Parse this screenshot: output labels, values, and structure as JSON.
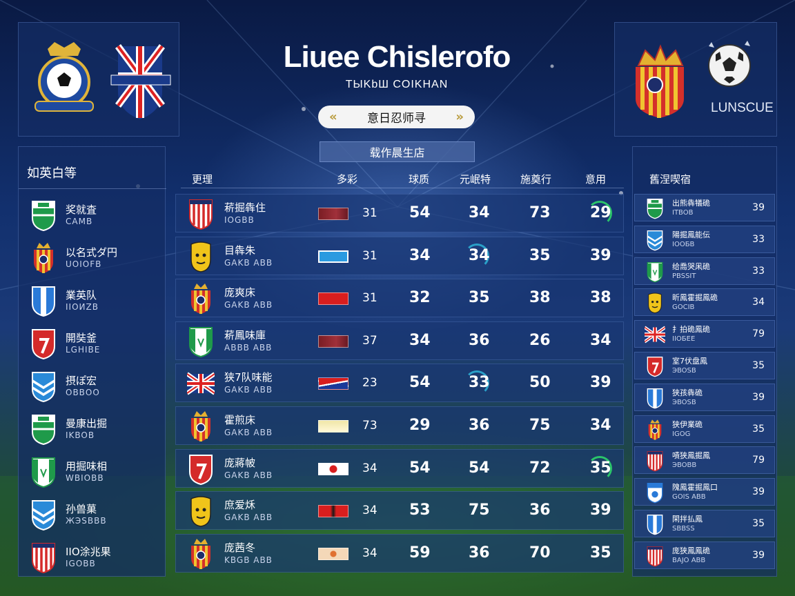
{
  "header": {
    "title": "Liuee Chislerofo",
    "subtitle": "TЫKbШ COIKHAN",
    "nav_label": "意日忍师寻",
    "nav_prev_icon": "chevron-left-double-icon",
    "nav_next_icon": "chevron-right-double-icon",
    "table_tab_label": "载作晨生店"
  },
  "logos": {
    "right_brand_text": "LUNSCUE",
    "left_icons": [
      "club-crest-icon",
      "union-jack-shield-icon"
    ],
    "right_icons": [
      "crowned-shield-icon",
      "football-icon"
    ]
  },
  "left_panel": {
    "title": "如英白等",
    "items": [
      {
        "name": "奖就査",
        "code": "CAMB",
        "crest": "green"
      },
      {
        "name": "以名式ダ円",
        "code": "UOIOFB",
        "crest": "redyellow"
      },
      {
        "name": "業英队",
        "code": "IIOИZB",
        "crest": "blue"
      },
      {
        "name": "開奘釜",
        "code": "LGHIBE",
        "crest": "red"
      },
      {
        "name": "摂ぽ宏",
        "code": "ОВВОО",
        "crest": "bluestripes"
      },
      {
        "name": "曼康出掘",
        "code": "IKBOB",
        "crest": "green"
      },
      {
        "name": "用掘味相",
        "code": "WBIOBB",
        "crest": "greenwhite"
      },
      {
        "name": "孙兽菓",
        "code": "ЖЭSBBB",
        "crest": "bluestripes"
      },
      {
        "name": "IIO涂兆果",
        "code": "IGOBB",
        "crest": "redstripes"
      }
    ]
  },
  "table": {
    "headers": [
      "更理",
      "多彩",
      "球质",
      "元岷特",
      "施奠行",
      "意用"
    ],
    "rows": [
      {
        "name": "菥掘犇住",
        "code": "IOGBB",
        "crest": "redstripes",
        "flag": "darkred",
        "c1": "31",
        "c2": "54",
        "c3": "34",
        "c4": "73",
        "c5": "29",
        "ring": "c5g"
      },
      {
        "name": "目犇朱",
        "code": "GAKB ABB",
        "crest": "yellowface",
        "flag": "lightblue",
        "c1": "31",
        "c2": "34",
        "c3": "34",
        "c4": "35",
        "c5": "39",
        "ring": "c3"
      },
      {
        "name": "庞爽床",
        "code": "GAKB ABB",
        "crest": "redyellow",
        "flag": "red",
        "c1": "31",
        "c2": "32",
        "c3": "35",
        "c4": "38",
        "c5": "38",
        "ring": ""
      },
      {
        "name": "菥鳳味庫",
        "code": "ABBB ABB",
        "crest": "greenwhite",
        "flag": "darkred",
        "c1": "37",
        "c2": "34",
        "c3": "36",
        "c4": "26",
        "c5": "34",
        "ring": ""
      },
      {
        "name": "狭7队味能",
        "code": "GAKB ABB",
        "crest": "unionjack",
        "flag": "redblue",
        "c1": "23",
        "c2": "54",
        "c3": "33",
        "c4": "50",
        "c5": "39",
        "ring": "c3"
      },
      {
        "name": "霍煎床",
        "code": "GAKB ABB",
        "crest": "redyellow",
        "flag": "paleyellow",
        "c1": "73",
        "c2": "29",
        "c3": "36",
        "c4": "75",
        "c5": "34",
        "ring": ""
      },
      {
        "name": "庞蔣帔",
        "code": "GAKB ABB",
        "crest": "red",
        "flag": "japan",
        "c1": "34",
        "c2": "54",
        "c3": "54",
        "c4": "72",
        "c5": "35",
        "ring": "c5g"
      },
      {
        "name": "庶爱秌",
        "code": "GAKB ABB",
        "crest": "yellowface",
        "flag": "redblack",
        "c1": "34",
        "c2": "53",
        "c3": "75",
        "c4": "36",
        "c5": "39",
        "ring": ""
      },
      {
        "name": "庞茜冬",
        "code": "KBGB ABB",
        "crest": "redyellow",
        "flag": "cream",
        "c1": "34",
        "c2": "59",
        "c3": "36",
        "c4": "70",
        "c5": "35",
        "ring": ""
      }
    ]
  },
  "right_panel": {
    "title": "舊涅喫宿",
    "items": [
      {
        "name": "出熊犇犠硊",
        "code": "ITBOB",
        "pts": "39",
        "crest": "green"
      },
      {
        "name": "陽掘鳳能伝",
        "code": "IOOБB",
        "pts": "33",
        "crest": "bluestripes"
      },
      {
        "name": "给喬哭凩硊",
        "code": "PBSSIT",
        "pts": "33",
        "crest": "greenwhite"
      },
      {
        "name": "昕鳳霍掘鳳硊",
        "code": "GOCIB",
        "pts": "34",
        "crest": "yellowface"
      },
      {
        "name": "扌拍硊鳳硊",
        "code": "IIOБEE",
        "pts": "79",
        "crest": "unionjack"
      },
      {
        "name": "室7伏盘鳳",
        "code": "ЭBOSB",
        "pts": "35",
        "crest": "red"
      },
      {
        "name": "狭孩犇硊",
        "code": "ЭBOSB",
        "pts": "39",
        "crest": "blue"
      },
      {
        "name": "狭伊業硊",
        "code": "IGOG",
        "pts": "35",
        "crest": "redyellow"
      },
      {
        "name": "嘖狭鳳掘鳳",
        "code": "ЭBOВB",
        "pts": "79",
        "crest": "redstripes"
      },
      {
        "name": "隗鳳霍掘鳳口",
        "code": "GOIS ABB",
        "pts": "39",
        "crest": "bluewhite"
      },
      {
        "name": "閑拌払鳳",
        "code": "SBBSS",
        "pts": "35",
        "crest": "blue"
      },
      {
        "name": "庞狭鳳鳳硊",
        "code": "BAJO ABB",
        "pts": "39",
        "crest": "redstripes"
      }
    ]
  },
  "colors": {
    "panel": "#142d64",
    "accent_ring": "#2aa0c8",
    "accent_ring_green": "#2bc46a",
    "nav_arrow": "#b89a3a"
  }
}
